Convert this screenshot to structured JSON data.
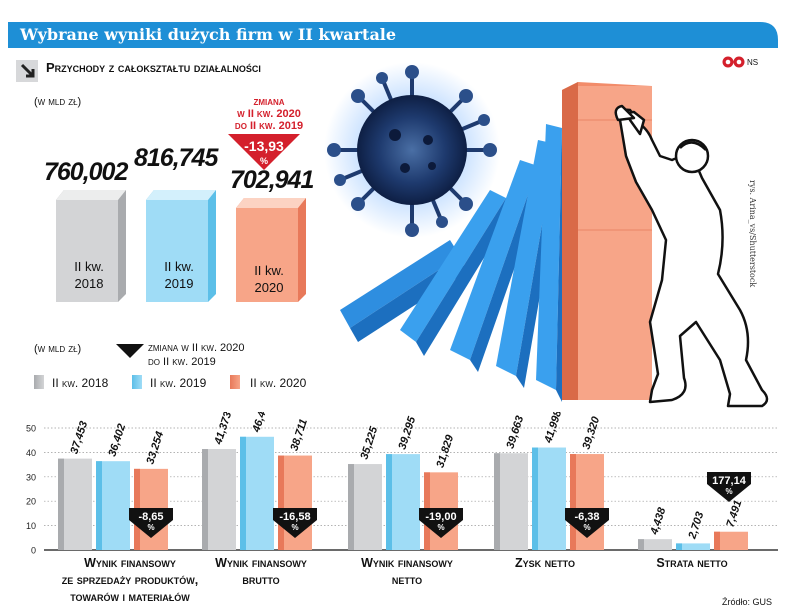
{
  "title": "Wybrane wyniki dużych firm w II kwartale",
  "revenue": {
    "title": "Przychody z całokształtu działalności",
    "unit": "(w mld zł)",
    "items": [
      {
        "value": "760,002",
        "label1": "II kw.",
        "label2": "2018",
        "color": "#c8c9cb"
      },
      {
        "value": "816,745",
        "label1": "II kw.",
        "label2": "2019",
        "color": "#8fd6f5"
      },
      {
        "value": "702,941",
        "label1": "II kw.",
        "label2": "2020",
        "color": "#f6a081"
      }
    ],
    "change_head": [
      "zmiana",
      "w II kw. 2020",
      "do II kw. 2019"
    ],
    "change_value": "-13,93",
    "change_unit": "%"
  },
  "credit": "rys. Arina_vs/Shutterstock",
  "logo": {
    "text": "NS"
  },
  "legend": {
    "unit": "(w mld zł)",
    "change_text": [
      "zmiana w II kw. 2020",
      "do II kw. 2019"
    ],
    "series": [
      "II kw. 2018",
      "II kw. 2019",
      "II kw. 2020"
    ]
  },
  "colors": {
    "s2018": "#c8c9cb",
    "s2019": "#8fd6f5",
    "s2020": "#f6a081",
    "accent": "#1e8fd6",
    "red": "#d4202c"
  },
  "chart_data": {
    "type": "bar",
    "categories": [
      "Wynik finansowy ze sprzedaży produktów, towarów i materiałów",
      "Wynik finansowy brutto",
      "Wynik finansowy netto",
      "Zysk netto",
      "Strata netto"
    ],
    "category_lines": [
      [
        "Wynik finansowy",
        "ze sprzedaży produktów,",
        "towarów i materiałów"
      ],
      [
        "Wynik finansowy",
        "brutto"
      ],
      [
        "Wynik finansowy",
        "netto"
      ],
      [
        "Zysk netto"
      ],
      [
        "Strata netto"
      ]
    ],
    "series": [
      {
        "name": "II kw. 2018",
        "values": [
          37.453,
          41.373,
          35.225,
          39.663,
          4.438
        ],
        "labels": [
          "37,453",
          "41,373",
          "35,225",
          "39,663",
          "4,438"
        ]
      },
      {
        "name": "II kw. 2019",
        "values": [
          36.402,
          46.403,
          39.295,
          41.998,
          2.703
        ],
        "labels": [
          "36,402",
          "46,403",
          "39,295",
          "41,998",
          "2,703"
        ]
      },
      {
        "name": "II kw. 2020",
        "values": [
          33.254,
          38.711,
          31.829,
          39.32,
          7.491
        ],
        "labels": [
          "33,254",
          "38,711",
          "31,829",
          "39,320",
          "7,491"
        ]
      }
    ],
    "changes": [
      "-8,65",
      "-16,58",
      "-19,00",
      "-6,38",
      "177,14"
    ],
    "change_unit": "%",
    "yticks": [
      0,
      10,
      20,
      30,
      40,
      50
    ],
    "ylim": [
      0,
      50
    ],
    "grid": true,
    "source": "Źródło: GUS"
  }
}
